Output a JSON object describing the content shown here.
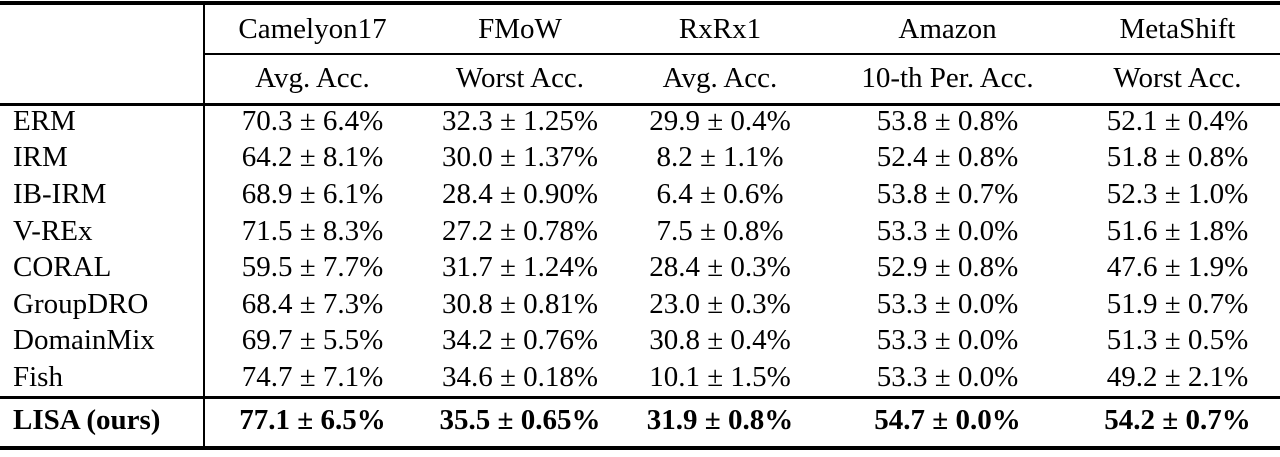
{
  "page": {
    "background_color": "#ffffff",
    "text_color": "#000000",
    "rule_color": "#000000"
  },
  "table": {
    "corner_label": "",
    "col_groups": [
      "Camelyon17",
      "FMoW",
      "RxRx1",
      "Amazon",
      "MetaShift"
    ],
    "col_metrics": [
      "Avg. Acc.",
      "Worst Acc.",
      "Avg. Acc.",
      "10-th Per. Acc.",
      "Worst Acc."
    ],
    "rows": [
      {
        "method": "ERM",
        "values": [
          "70.3 ± 6.4%",
          "32.3 ± 1.25%",
          "29.9 ± 0.4%",
          "53.8 ± 0.8%",
          "52.1 ± 0.4%"
        ]
      },
      {
        "method": "IRM",
        "values": [
          "64.2 ± 8.1%",
          "30.0 ± 1.37%",
          "8.2 ± 1.1%",
          "52.4 ± 0.8%",
          "51.8 ± 0.8%"
        ]
      },
      {
        "method": "IB-IRM",
        "values": [
          "68.9 ± 6.1%",
          "28.4 ± 0.90%",
          "6.4 ± 0.6%",
          "53.8 ± 0.7%",
          "52.3 ± 1.0%"
        ]
      },
      {
        "method": "V-REx",
        "values": [
          "71.5 ± 8.3%",
          "27.2 ± 0.78%",
          "7.5 ± 0.8%",
          "53.3 ± 0.0%",
          "51.6 ± 1.8%"
        ]
      },
      {
        "method": "CORAL",
        "values": [
          "59.5 ± 7.7%",
          "31.7 ± 1.24%",
          "28.4 ± 0.3%",
          "52.9 ± 0.8%",
          "47.6 ± 1.9%"
        ]
      },
      {
        "method": "GroupDRO",
        "values": [
          "68.4 ± 7.3%",
          "30.8 ± 0.81%",
          "23.0 ± 0.3%",
          "53.3 ± 0.0%",
          "51.9 ± 0.7%"
        ]
      },
      {
        "method": "DomainMix",
        "values": [
          "69.7 ± 5.5%",
          "34.2 ± 0.76%",
          "30.8 ± 0.4%",
          "53.3 ± 0.0%",
          "51.3 ± 0.5%"
        ]
      },
      {
        "method": "Fish",
        "values": [
          "74.7 ± 7.1%",
          "34.6 ± 0.18%",
          "10.1 ± 1.5%",
          "53.3 ± 0.0%",
          "49.2 ± 2.1%"
        ]
      }
    ],
    "final_row": {
      "method": "LISA (ours)",
      "values": [
        "77.1 ± 6.5%",
        "35.5 ± 0.65%",
        "31.9 ± 0.8%",
        "54.7 ± 0.0%",
        "54.2 ± 0.7%"
      ]
    }
  }
}
